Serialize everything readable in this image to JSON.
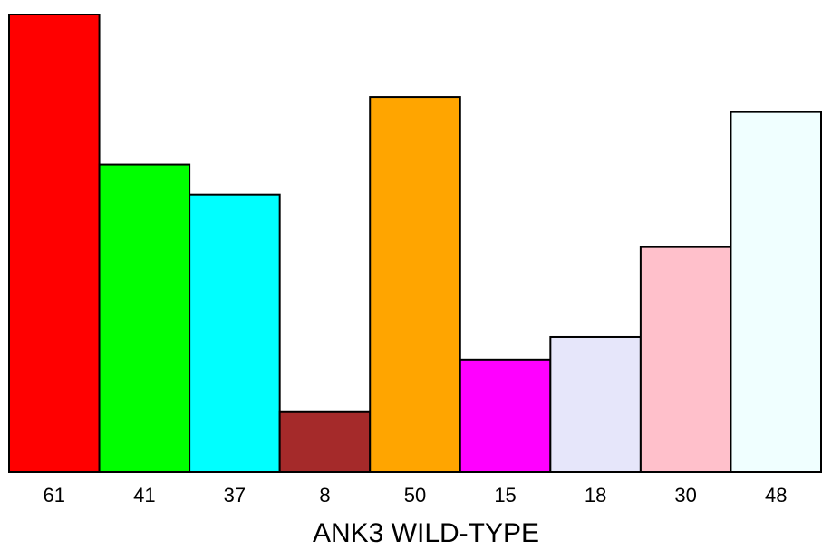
{
  "chart_data": {
    "type": "bar",
    "title": "",
    "xlabel": "ANK3 WILD-TYPE",
    "ylabel": "",
    "categories": [
      "61",
      "41",
      "37",
      "8",
      "50",
      "15",
      "18",
      "30",
      "48"
    ],
    "values": [
      61,
      41,
      37,
      8,
      50,
      15,
      18,
      30,
      48
    ],
    "colors": [
      "#ff0000",
      "#00ff00",
      "#00ffff",
      "#a52a2a",
      "#ffa500",
      "#ff00ff",
      "#e6e6fa",
      "#ffc0cb",
      "#f0ffff"
    ],
    "ylim": [
      0,
      61
    ],
    "grid": false,
    "legend": "none"
  }
}
